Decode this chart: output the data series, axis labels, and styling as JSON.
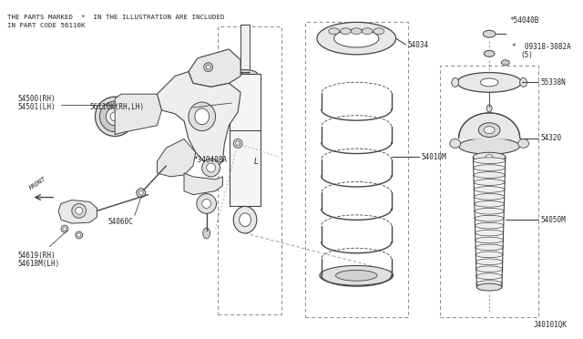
{
  "bg_color": "#ffffff",
  "fig_width": 6.4,
  "fig_height": 3.72,
  "header_line1": "THE PARTS MARKED  *  IN THE ILLUSTRATION ARE INCLUDED",
  "header_line2": "IN PART CODE 56110K",
  "footer": "J40101QK",
  "lc": "#444444",
  "tc": "#222222",
  "fs": 5.5
}
